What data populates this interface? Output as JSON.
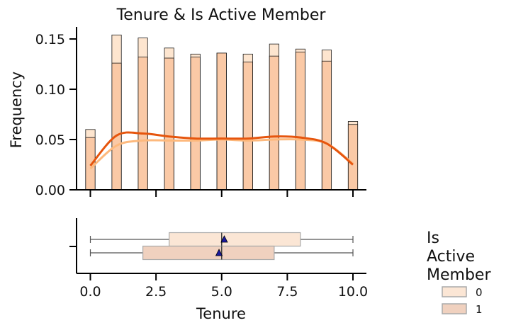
{
  "chart_data": {
    "type": "histogram",
    "title": "Tenure & Is Active Member",
    "xlabel": "Tenure",
    "ylabel": "Frequency",
    "xlim": [
      -0.5,
      10.5
    ],
    "ylim": [
      0,
      0.162
    ],
    "xticks": [
      "0.0",
      "2.5",
      "5.0",
      "7.5",
      "10.0"
    ],
    "yticks": [
      "0.00",
      "0.05",
      "0.10",
      "0.15"
    ],
    "bins": [
      0,
      1,
      2,
      3,
      4,
      5,
      6,
      7,
      8,
      9,
      10
    ],
    "series": [
      {
        "name": "0",
        "color": "#fde4cc",
        "kde_color": "#fdb97d",
        "values": [
          0.06,
          0.154,
          0.151,
          0.141,
          0.135,
          0.136,
          0.135,
          0.145,
          0.14,
          0.139,
          0.068
        ],
        "kde": [
          0.021,
          0.044,
          0.049,
          0.049,
          0.049,
          0.05,
          0.049,
          0.05,
          0.05,
          0.046,
          0.026
        ]
      },
      {
        "name": "1",
        "color": "#f9c49f",
        "kde_color": "#e6550d",
        "values": [
          0.052,
          0.126,
          0.132,
          0.131,
          0.132,
          0.136,
          0.127,
          0.133,
          0.137,
          0.128,
          0.065
        ],
        "kde": [
          0.024,
          0.054,
          0.056,
          0.053,
          0.051,
          0.051,
          0.051,
          0.053,
          0.052,
          0.046,
          0.025
        ]
      }
    ],
    "boxplot": [
      {
        "name": "0",
        "whisker_low": 0,
        "q1": 3,
        "median": 5,
        "q3": 8,
        "whisker_high": 10,
        "mean": 5.1,
        "color": "#fbe6d5"
      },
      {
        "name": "1",
        "whisker_low": 0,
        "q1": 2,
        "median": 5,
        "q3": 7,
        "whisker_high": 10,
        "mean": 4.9,
        "color": "#f0d1bf"
      }
    ],
    "legend": {
      "title": "Is\nActive\nMember",
      "placement": "right",
      "entries": [
        "0",
        "1"
      ]
    }
  }
}
